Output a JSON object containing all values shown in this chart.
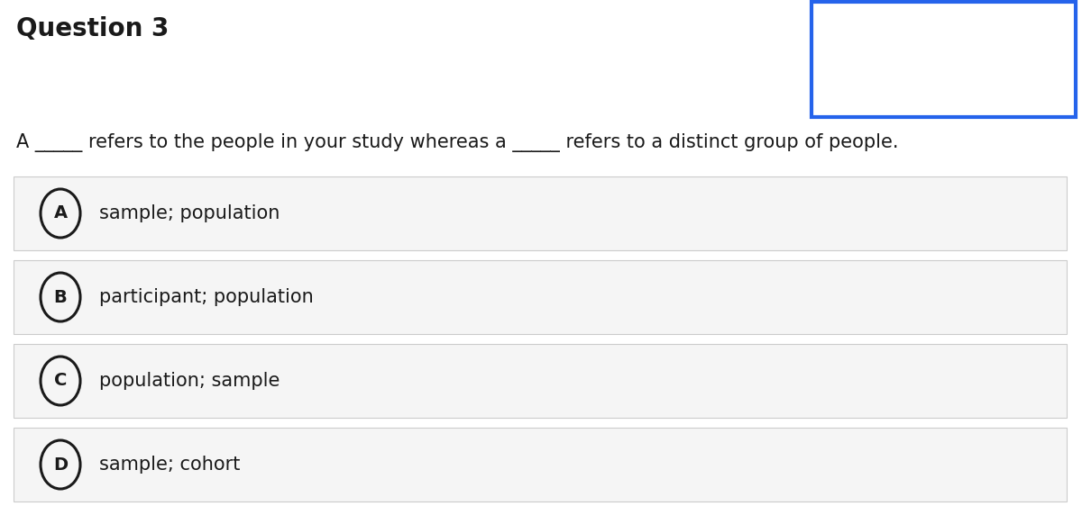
{
  "title": "Question 3",
  "question_text": "A _____ refers to the people in your study whereas a _____ refers to a distinct group of people.",
  "options": [
    {
      "letter": "A",
      "text": "sample; population"
    },
    {
      "letter": "B",
      "text": "participant; population"
    },
    {
      "letter": "C",
      "text": "population; sample"
    },
    {
      "letter": "D",
      "text": "sample; cohort"
    }
  ],
  "bg_color": "#ffffff",
  "option_bg_color": "#f5f5f5",
  "option_border_color": "#cccccc",
  "title_fontsize": 20,
  "question_fontsize": 15,
  "option_fontsize": 15,
  "circle_color": "#1a1a1a",
  "text_color": "#1a1a1a",
  "box_border_color": "#2563eb",
  "fig_width": 12.0,
  "fig_height": 5.62,
  "dpi": 100
}
